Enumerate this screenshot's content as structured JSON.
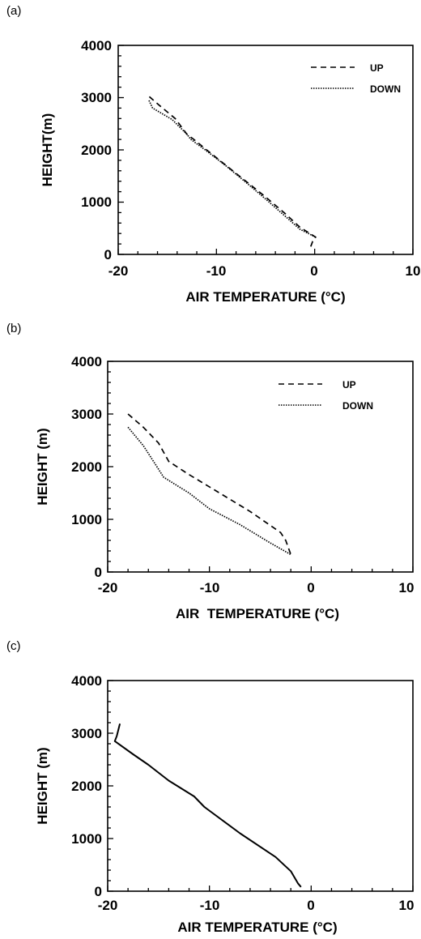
{
  "chart_data": [
    {
      "panel": "(a)",
      "type": "line",
      "xlabel": "AIR TEMPERATURE (°C)",
      "ylabel": "HEIGHT(m)",
      "xlim": [
        -20,
        10
      ],
      "ylim": [
        0,
        4000
      ],
      "xticks": [
        "-20",
        "-10",
        "0",
        "10"
      ],
      "yticks": [
        "0",
        "1000",
        "2000",
        "3000",
        "4000"
      ],
      "legend": "top-right",
      "series": [
        {
          "name": "UP",
          "style": "dashed",
          "points": [
            [
              -0.4,
              150
            ],
            [
              -0.2,
              250
            ],
            [
              0.1,
              330
            ],
            [
              -1.5,
              520
            ],
            [
              -3,
              780
            ],
            [
              -5,
              1100
            ],
            [
              -7,
              1400
            ],
            [
              -9,
              1700
            ],
            [
              -11,
              2000
            ],
            [
              -12.3,
              2200
            ],
            [
              -13,
              2300
            ],
            [
              -14.2,
              2600
            ],
            [
              -15.8,
              2850
            ],
            [
              -16.9,
              3030
            ]
          ]
        },
        {
          "name": "DOWN",
          "style": "dotted",
          "points": [
            [
              0.1,
              330
            ],
            [
              -1.5,
              480
            ],
            [
              -3,
              730
            ],
            [
              -5,
              1060
            ],
            [
              -7,
              1380
            ],
            [
              -9,
              1690
            ],
            [
              -11,
              1980
            ],
            [
              -12.6,
              2200
            ],
            [
              -13,
              2300
            ],
            [
              -14.5,
              2580
            ],
            [
              -16.5,
              2800
            ],
            [
              -16.9,
              2960
            ]
          ]
        }
      ]
    },
    {
      "panel": "(b)",
      "type": "line",
      "xlabel": "AIR  TEMPERATURE (°C)",
      "ylabel": "HEIGHT (m)",
      "xlim": [
        -20,
        10
      ],
      "ylim": [
        0,
        4000
      ],
      "xticks": [
        "-20",
        "-10",
        "0",
        "10"
      ],
      "yticks": [
        "0",
        "1000",
        "2000",
        "3000",
        "4000"
      ],
      "legend": "top-right",
      "series": [
        {
          "name": "UP",
          "style": "dashed",
          "points": [
            [
              -18,
              3000
            ],
            [
              -16.5,
              2750
            ],
            [
              -15,
              2450
            ],
            [
              -14,
              2100
            ],
            [
              -12,
              1850
            ],
            [
              -9,
              1500
            ],
            [
              -6,
              1150
            ],
            [
              -3,
              750
            ],
            [
              -2.5,
              600
            ],
            [
              -2,
              330
            ]
          ]
        },
        {
          "name": "DOWN",
          "style": "dotted",
          "points": [
            [
              -18,
              2750
            ],
            [
              -16.5,
              2400
            ],
            [
              -15.5,
              2100
            ],
            [
              -14.5,
              1800
            ],
            [
              -12,
              1500
            ],
            [
              -10,
              1200
            ],
            [
              -7,
              900
            ],
            [
              -4,
              550
            ],
            [
              -2,
              330
            ]
          ]
        }
      ]
    },
    {
      "panel": "(c)",
      "type": "line",
      "xlabel": "AIR TEMPERATURE (°C)",
      "ylabel": "HEIGHT (m)",
      "xlim": [
        -20,
        10
      ],
      "ylim": [
        0,
        4000
      ],
      "xticks": [
        "-20",
        "-10",
        "0",
        "10"
      ],
      "yticks": [
        "0",
        "1000",
        "2000",
        "3000",
        "4000"
      ],
      "legend": "none",
      "series": [
        {
          "style": "solid",
          "points": [
            [
              -18.8,
              3180
            ],
            [
              -19.1,
              2950
            ],
            [
              -19.3,
              2850
            ],
            [
              -17.5,
              2600
            ],
            [
              -16,
              2400
            ],
            [
              -14,
              2100
            ],
            [
              -11.5,
              1800
            ],
            [
              -10.5,
              1600
            ],
            [
              -7,
              1100
            ],
            [
              -3.5,
              650
            ],
            [
              -2,
              380
            ],
            [
              -1.3,
              150
            ],
            [
              -1,
              80
            ]
          ]
        }
      ]
    }
  ]
}
